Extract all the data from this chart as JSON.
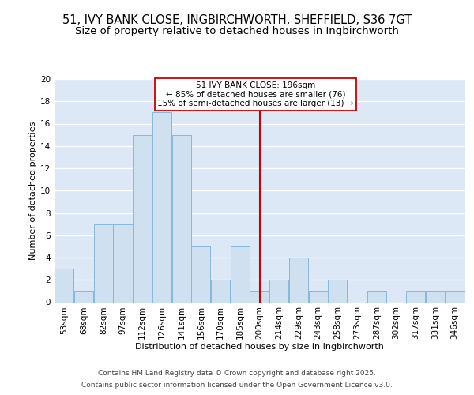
{
  "title1": "51, IVY BANK CLOSE, INGBIRCHWORTH, SHEFFIELD, S36 7GT",
  "title2": "Size of property relative to detached houses in Ingbirchworth",
  "categories": [
    "53sqm",
    "68sqm",
    "82sqm",
    "97sqm",
    "112sqm",
    "126sqm",
    "141sqm",
    "156sqm",
    "170sqm",
    "185sqm",
    "200sqm",
    "214sqm",
    "229sqm",
    "243sqm",
    "258sqm",
    "273sqm",
    "287sqm",
    "302sqm",
    "317sqm",
    "331sqm",
    "346sqm"
  ],
  "values": [
    3,
    1,
    7,
    7,
    15,
    17,
    15,
    5,
    2,
    5,
    1,
    2,
    4,
    1,
    2,
    0,
    1,
    0,
    1,
    1,
    1
  ],
  "bar_color": "#cfe0f0",
  "bar_edge_color": "#88b8d8",
  "bar_width": 0.98,
  "vline_x": 10,
  "vline_color": "#cc0000",
  "xlabel": "Distribution of detached houses by size in Ingbirchworth",
  "ylabel": "Number of detached properties",
  "ylim": [
    0,
    20
  ],
  "yticks": [
    0,
    2,
    4,
    6,
    8,
    10,
    12,
    14,
    16,
    18,
    20
  ],
  "annotation_text": "51 IVY BANK CLOSE: 196sqm\n← 85% of detached houses are smaller (76)\n15% of semi-detached houses are larger (13) →",
  "annotation_box_color": "#ffffff",
  "annotation_border_color": "#cc0000",
  "bg_color": "#dce8f5",
  "fig_color": "#ffffff",
  "grid_color": "#ffffff",
  "footer1": "Contains HM Land Registry data © Crown copyright and database right 2025.",
  "footer2": "Contains public sector information licensed under the Open Government Licence v3.0.",
  "title_fontsize": 10.5,
  "subtitle_fontsize": 9.5,
  "axis_label_fontsize": 8,
  "tick_fontsize": 7.5,
  "footer_fontsize": 6.5
}
